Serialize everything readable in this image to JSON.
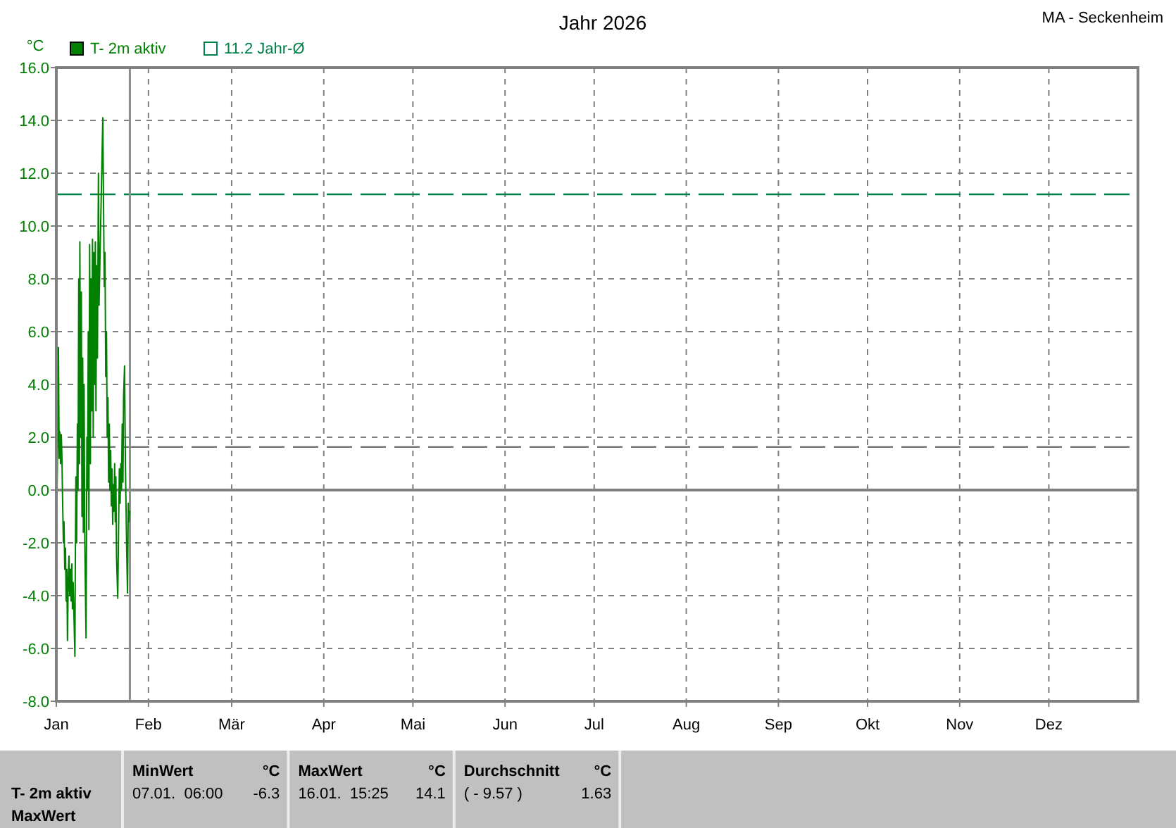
{
  "chart_data": {
    "type": "line",
    "title": "Jahr 2026",
    "subtitle": "MA - Seckenheim",
    "ylabel": "°C",
    "x": [
      "2026-01-01T00:00",
      "2026-01-01T06:00",
      "2026-01-01T11:00",
      "2026-01-01T17:00",
      "2026-01-01T23:00",
      "2026-01-02T04:00",
      "2026-01-02T10:00",
      "2026-01-02T16:00",
      "2026-01-02T21:00",
      "2026-01-03T03:00",
      "2026-01-03T09:00",
      "2026-01-03T14:00",
      "2026-01-03T20:00",
      "2026-01-04T02:00",
      "2026-01-04T07:00",
      "2026-01-04T13:00",
      "2026-01-04T18:00",
      "2026-01-05T00:00",
      "2026-01-05T06:00",
      "2026-01-05T12:00",
      "2026-01-05T17:00",
      "2026-01-05T23:00",
      "2026-01-06T05:00",
      "2026-01-06T10:00",
      "2026-01-06T16:00",
      "2026-01-07T06:00",
      "2026-01-07T09:00",
      "2026-01-07T14:00",
      "2026-01-07T20:00",
      "2026-01-08T02:00",
      "2026-01-08T07:00",
      "2026-01-08T13:00",
      "2026-01-08T19:00",
      "2026-01-08T22:00",
      "2026-01-09T04:00",
      "2026-01-09T10:00",
      "2026-01-09T15:00",
      "2026-01-09T21:00",
      "2026-01-10T02:00",
      "2026-01-10T08:00",
      "2026-01-10T14:00",
      "2026-01-11T00:00",
      "2026-01-11T07:00",
      "2026-01-11T12:00",
      "2026-01-11T18:00",
      "2026-01-11T23:00",
      "2026-01-12T05:00",
      "2026-01-12T11:00",
      "2026-01-12T17:00",
      "2026-01-12T22:00",
      "2026-01-13T04:00",
      "2026-01-13T10:00",
      "2026-01-13T15:00",
      "2026-01-13T21:00",
      "2026-01-14T03:00",
      "2026-01-14T08:00",
      "2026-01-14T14:00",
      "2026-01-14T20:00",
      "2026-01-15T04:00",
      "2026-01-15T09:00",
      "2026-01-16T15:25",
      "2026-01-16T21:00",
      "2026-01-17T03:00",
      "2026-01-17T09:00",
      "2026-01-17T15:00",
      "2026-01-17T21:00",
      "2026-01-18T03:00",
      "2026-01-18T09:00",
      "2026-01-18T14:00",
      "2026-01-18T20:00",
      "2026-01-19T01:00",
      "2026-01-19T07:00",
      "2026-01-19T12:00",
      "2026-01-19T18:00",
      "2026-01-19T23:00",
      "2026-01-20T05:00",
      "2026-01-20T10:00",
      "2026-01-20T15:00",
      "2026-01-20T20:00",
      "2026-01-21T01:00",
      "2026-01-21T06:00",
      "2026-01-21T16:00",
      "2026-01-22T00:00",
      "2026-01-22T05:00",
      "2026-01-22T11:00",
      "2026-01-22T17:00",
      "2026-01-22T22:00",
      "2026-01-23T04:00",
      "2026-01-23T10:00",
      "2026-01-23T15:00",
      "2026-01-23T23:00",
      "2026-01-24T06:00",
      "2026-01-24T12:00",
      "2026-01-24T17:00",
      "2026-01-24T23:00",
      "2026-01-25T05:00",
      "2026-01-25T10:00",
      "2026-01-25T16:00"
    ],
    "series": [
      {
        "name": "T- 2m aktiv",
        "color": "#008000",
        "values": [
          1.6,
          0.0,
          2.0,
          5.4,
          1.2,
          2.2,
          1.0,
          2.1,
          1.3,
          -0.5,
          -2.0,
          -1.2,
          -3.0,
          -2.2,
          -4.2,
          -3.0,
          -5.7,
          -3.5,
          -2.5,
          -4.0,
          -3.0,
          -4.2,
          -2.8,
          -4.5,
          -3.5,
          -6.3,
          -3.0,
          0.5,
          -2.0,
          2.5,
          0.0,
          8.0,
          1.0,
          9.4,
          2.0,
          7.5,
          -1.0,
          5.0,
          -1.6,
          4.0,
          -2.0,
          -5.6,
          2.0,
          0.0,
          6.0,
          -1.5,
          9.3,
          1.0,
          8.0,
          3.0,
          9.5,
          2.0,
          9.0,
          4.0,
          9.4,
          3.0,
          8.5,
          5.0,
          12.0,
          7.0,
          14.1,
          10.9,
          7.7,
          9.0,
          4.3,
          6.0,
          2.0,
          3.5,
          0.3,
          2.5,
          0.0,
          1.5,
          -0.6,
          0.8,
          -1.3,
          0.2,
          -0.8,
          1.0,
          -1.2,
          0.5,
          -2.5,
          -4.1,
          -1.0,
          0.8,
          -0.5,
          1.0,
          0.0,
          2.5,
          0.3,
          3.5,
          4.7,
          1.0,
          -1.0,
          -2.5,
          -3.9,
          -0.5,
          -1.2,
          -0.8
        ]
      }
    ],
    "xlim": [
      "2026-01-01",
      "2026-12-31"
    ],
    "xticks": [
      {
        "value": "2026-01-01",
        "label": "Jan"
      },
      {
        "value": "2026-02-01",
        "label": "Feb"
      },
      {
        "value": "2026-03-01",
        "label": "Mär"
      },
      {
        "value": "2026-04-01",
        "label": "Apr"
      },
      {
        "value": "2026-05-01",
        "label": "Mai"
      },
      {
        "value": "2026-06-01",
        "label": "Jun"
      },
      {
        "value": "2026-07-01",
        "label": "Jul"
      },
      {
        "value": "2026-08-01",
        "label": "Aug"
      },
      {
        "value": "2026-09-01",
        "label": "Sep"
      },
      {
        "value": "2026-10-01",
        "label": "Okt"
      },
      {
        "value": "2026-11-01",
        "label": "Nov"
      },
      {
        "value": "2026-12-01",
        "label": "Dez"
      }
    ],
    "ylim": [
      -8,
      16
    ],
    "yticks": [
      {
        "value": -8,
        "label": "-8.0"
      },
      {
        "value": -6,
        "label": "-6.0"
      },
      {
        "value": -4,
        "label": "-4.0"
      },
      {
        "value": -2,
        "label": "-2.0"
      },
      {
        "value": 0,
        "label": "0.0"
      },
      {
        "value": 2,
        "label": "2.0"
      },
      {
        "value": 4,
        "label": "4.0"
      },
      {
        "value": 6,
        "label": "6.0"
      },
      {
        "value": 8,
        "label": "8.0"
      },
      {
        "value": 10,
        "label": "10.0"
      },
      {
        "value": 12,
        "label": "12.0"
      },
      {
        "value": 14,
        "label": "14.0"
      },
      {
        "value": 16,
        "label": "16.0"
      }
    ],
    "grid": true,
    "legend": "top left",
    "ref_lines": [
      {
        "axis": "y",
        "value": 11.2,
        "label": "11.2 Jahr-Ø",
        "color": "#00804a",
        "line_style": "dashed"
      },
      {
        "axis": "y",
        "value": 1.63,
        "color": "#6e6e6e",
        "line_style": "dashed"
      },
      {
        "axis": "y",
        "value": 0,
        "color": "#808080",
        "line_style": "solid"
      },
      {
        "axis": "x",
        "value": "2026-01-25T18:00",
        "color": "#8c8c8c",
        "line_style": "solid"
      }
    ],
    "annotations": [
      "T- 2m aktiv",
      "MaxWert",
      "MinWert",
      "°C",
      "07.01.  06:00",
      "-6.3",
      "MaxWert",
      "°C",
      "16.01.  15:25",
      "14.1",
      "Durchschnitt",
      "°C",
      "( - 9.57 )",
      "1.63"
    ]
  }
}
